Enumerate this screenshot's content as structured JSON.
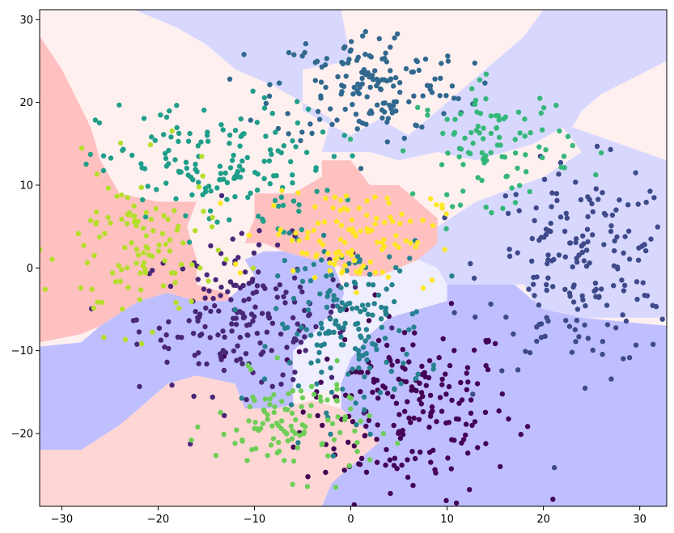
{
  "chart_data": {
    "type": "scatter",
    "title": "",
    "xlabel": "",
    "ylabel": "",
    "xlim": [
      -32.3,
      32.8
    ],
    "ylim": [
      -28.8,
      31.2
    ],
    "xticks": [
      -30,
      -20,
      -10,
      0,
      10,
      20,
      30
    ],
    "yticks": [
      -20,
      -10,
      0,
      10,
      20,
      30
    ],
    "grid": false,
    "legend": "none",
    "background_colors": {
      "light": "#fff0f0",
      "red": "#ffc0c0",
      "pink": "#ffd6d6",
      "blue": "#bfbfff",
      "lightblue": "#d8d8ff",
      "paleblue": "#eeeeff"
    },
    "background_regions": [
      {
        "color": "light",
        "points": [
          [
            -32.3,
            31.2
          ],
          [
            32.8,
            31.2
          ],
          [
            32.8,
            -28.8
          ],
          [
            -32.3,
            -28.8
          ]
        ]
      },
      {
        "color": "lightblue",
        "points": [
          [
            -22.5,
            31.2
          ],
          [
            -1,
            31.2
          ],
          [
            0,
            25
          ],
          [
            -5,
            24
          ],
          [
            -5,
            19
          ],
          [
            0,
            16
          ],
          [
            3,
            18
          ],
          [
            6,
            16
          ],
          [
            9,
            19
          ],
          [
            12,
            22
          ],
          [
            18,
            28
          ],
          [
            20,
            31.2
          ],
          [
            32.8,
            31.2
          ],
          [
            32.8,
            25
          ],
          [
            26,
            21
          ],
          [
            24,
            19
          ],
          [
            23,
            17
          ],
          [
            32.8,
            13
          ],
          [
            32.8,
            -6
          ],
          [
            24,
            -6
          ],
          [
            20,
            -6
          ],
          [
            18,
            -2
          ],
          [
            10,
            -2
          ],
          [
            8,
            0
          ],
          [
            5,
            1
          ],
          [
            7,
            2
          ],
          [
            9,
            5
          ],
          [
            13,
            8
          ],
          [
            20,
            11
          ],
          [
            24,
            14
          ],
          [
            22,
            17
          ],
          [
            19,
            15
          ],
          [
            13,
            13
          ],
          [
            9,
            14
          ],
          [
            5,
            13
          ],
          [
            2,
            14
          ],
          [
            -3,
            14
          ],
          [
            -2,
            18
          ],
          [
            -5,
            20
          ],
          [
            -8,
            22
          ],
          [
            -12,
            24
          ],
          [
            -15,
            27
          ],
          [
            -18,
            29
          ]
        ]
      },
      {
        "color": "red",
        "points": [
          [
            -32.3,
            28
          ],
          [
            -30,
            24
          ],
          [
            -27,
            17
          ],
          [
            -26,
            13
          ],
          [
            -24,
            9
          ],
          [
            -20,
            8
          ],
          [
            -16,
            8
          ],
          [
            -17,
            5
          ],
          [
            -16,
            1
          ],
          [
            -16,
            -2
          ],
          [
            -13,
            -3
          ],
          [
            -12,
            -4
          ],
          [
            -16,
            -4
          ],
          [
            -19,
            -4
          ],
          [
            -22,
            -4
          ],
          [
            -26,
            -7
          ],
          [
            -28,
            -8
          ],
          [
            -32.3,
            -9
          ]
        ]
      },
      {
        "color": "red",
        "points": [
          [
            -10,
            9
          ],
          [
            -6,
            9
          ],
          [
            -3,
            11
          ],
          [
            -3,
            13
          ],
          [
            0,
            13
          ],
          [
            2,
            10
          ],
          [
            5,
            10
          ],
          [
            7,
            8
          ],
          [
            9,
            6
          ],
          [
            9,
            3
          ],
          [
            7,
            1
          ],
          [
            5,
            0
          ],
          [
            3,
            -1
          ],
          [
            0,
            -1
          ],
          [
            -2,
            1
          ],
          [
            -4,
            1
          ],
          [
            -7,
            2
          ],
          [
            -9,
            3
          ],
          [
            -11,
            3
          ],
          [
            -10,
            6
          ]
        ]
      },
      {
        "color": "blue",
        "points": [
          [
            -32.3,
            -9.5
          ],
          [
            -28,
            -9
          ],
          [
            -26,
            -7
          ],
          [
            -22,
            -4
          ],
          [
            -19,
            -3
          ],
          [
            -16,
            -4
          ],
          [
            -13,
            -4
          ],
          [
            -11,
            -2
          ],
          [
            -10,
            -1
          ],
          [
            -11,
            1
          ],
          [
            -9,
            2
          ],
          [
            -7,
            2
          ],
          [
            -4,
            1
          ],
          [
            -2,
            1
          ],
          [
            -1,
            -2
          ],
          [
            0,
            -5
          ],
          [
            -3,
            -8
          ],
          [
            -5,
            -10
          ],
          [
            -6,
            -13
          ],
          [
            -6,
            -17
          ],
          [
            -11,
            -17
          ],
          [
            -12,
            -15
          ],
          [
            -16,
            -13
          ],
          [
            -19,
            -14
          ],
          [
            -21,
            -16
          ],
          [
            -24,
            -19
          ],
          [
            -28,
            -22
          ],
          [
            -32.3,
            -22
          ]
        ]
      },
      {
        "color": "paleblue",
        "points": [
          [
            -6,
            -10
          ],
          [
            -4,
            -8
          ],
          [
            -1,
            -4
          ],
          [
            0,
            -1
          ],
          [
            3,
            -1
          ],
          [
            5,
            0
          ],
          [
            7,
            1
          ],
          [
            9,
            0
          ],
          [
            10,
            -2
          ],
          [
            12,
            -4
          ],
          [
            10,
            -6
          ],
          [
            6,
            -6
          ],
          [
            4,
            -6
          ],
          [
            2,
            -8
          ],
          [
            0,
            -11
          ],
          [
            -1,
            -14
          ],
          [
            -3,
            -15
          ],
          [
            -6,
            -15
          ]
        ]
      },
      {
        "color": "blue",
        "points": [
          [
            -1,
            -14
          ],
          [
            0,
            -11
          ],
          [
            2,
            -8
          ],
          [
            4,
            -6
          ],
          [
            7,
            -5
          ],
          [
            10,
            -4
          ],
          [
            10,
            -2
          ],
          [
            13,
            -2
          ],
          [
            17,
            -2
          ],
          [
            20,
            -5
          ],
          [
            24,
            -6
          ],
          [
            32.8,
            -7
          ],
          [
            32.8,
            -28.8
          ],
          [
            -3,
            -28.8
          ],
          [
            -2,
            -26
          ],
          [
            1,
            -23
          ],
          [
            2,
            -20
          ],
          [
            -1,
            -17
          ]
        ]
      },
      {
        "color": "pink",
        "points": [
          [
            -32.3,
            -22
          ],
          [
            -28,
            -22
          ],
          [
            -24,
            -19
          ],
          [
            -21,
            -16
          ],
          [
            -19,
            -14
          ],
          [
            -16,
            -13
          ],
          [
            -12,
            -14
          ],
          [
            -11,
            -17
          ],
          [
            -8,
            -17
          ],
          [
            -4,
            -16
          ],
          [
            -1,
            -17
          ],
          [
            1,
            -19
          ],
          [
            3,
            -21
          ],
          [
            1,
            -23
          ],
          [
            -2,
            -26
          ],
          [
            -3,
            -28.8
          ],
          [
            -32.3,
            -28.8
          ]
        ]
      }
    ],
    "series": [
      {
        "color": "#440154",
        "cx": 6,
        "cy": -17,
        "sx": 5.5,
        "sy": 5.5,
        "n": 200
      },
      {
        "color": "#482777",
        "cx": -11,
        "cy": -6,
        "sx": 5.5,
        "sy": 4.5,
        "n": 190
      },
      {
        "color": "#3e4a89",
        "cx": 24,
        "cy": 0,
        "sx": 5,
        "sy": 6,
        "n": 190
      },
      {
        "color": "#31688e",
        "cx": 2,
        "cy": 22,
        "sx": 5,
        "sy": 3.5,
        "n": 160
      },
      {
        "color": "#1f9e89",
        "cx": -14,
        "cy": 12,
        "sx": 6,
        "sy": 4,
        "n": 160
      },
      {
        "color": "#26828e",
        "cx": 0,
        "cy": -7,
        "sx": 4,
        "sy": 5,
        "n": 170
      },
      {
        "color": "#35b779",
        "cx": 15,
        "cy": 15,
        "sx": 4,
        "sy": 3.5,
        "n": 100
      },
      {
        "color": "#6ece58",
        "cx": -6,
        "cy": -19,
        "sx": 4,
        "sy": 3,
        "n": 110
      },
      {
        "color": "#b5de2b",
        "cx": -22,
        "cy": 2,
        "sx": 4,
        "sy": 5,
        "n": 110
      },
      {
        "color": "#fde725",
        "cx": 0,
        "cy": 4,
        "sx": 4.5,
        "sy": 3,
        "n": 110
      }
    ]
  }
}
